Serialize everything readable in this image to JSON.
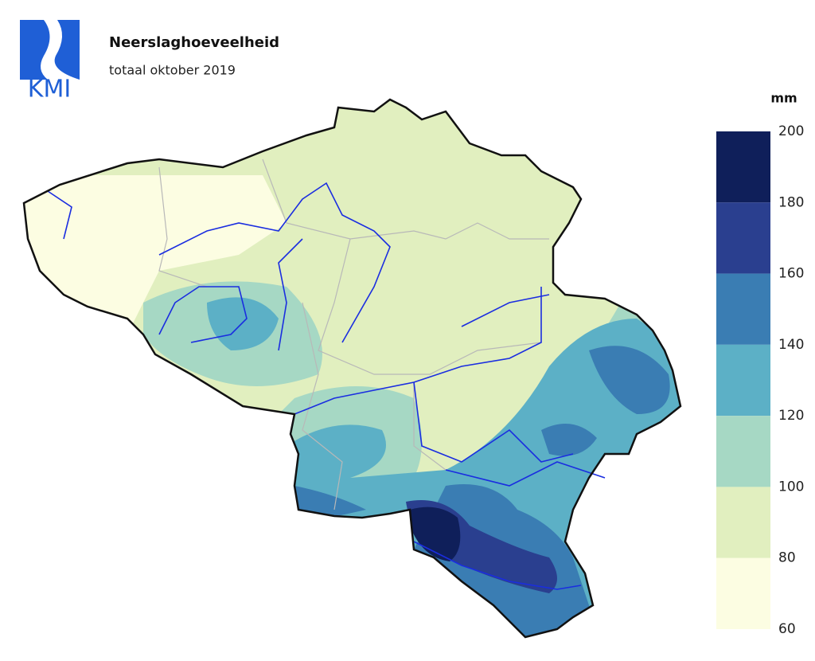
{
  "header": {
    "logo": "KMI",
    "title": "Neerslaghoeveelheid",
    "subtitle": "totaal oktober 2019"
  },
  "legend": {
    "unit": "mm",
    "ticks": [
      200,
      180,
      160,
      140,
      120,
      100,
      80,
      60
    ],
    "colors": [
      "#0f1f5a",
      "#2a3f8f",
      "#3a7db3",
      "#5cb0c6",
      "#a6d8c4",
      "#e1efbf",
      "#fcfde2"
    ]
  }
}
